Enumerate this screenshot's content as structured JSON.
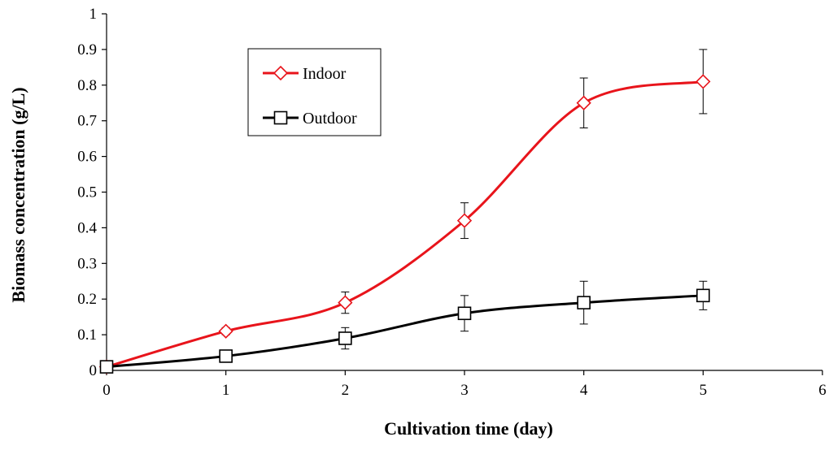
{
  "chart_data": {
    "type": "line",
    "title": "",
    "xlabel": "Cultivation time (day)",
    "ylabel": "Biomass concentration (g/L)",
    "xlim": [
      0,
      6
    ],
    "ylim": [
      0,
      1
    ],
    "x_ticks": [
      "0",
      "1",
      "2",
      "3",
      "4",
      "5",
      "6"
    ],
    "y_ticks": [
      "0",
      "0.1",
      "0.2",
      "0.3",
      "0.4",
      "0.5",
      "0.6",
      "0.7",
      "0.8",
      "0.9",
      "1"
    ],
    "grid": false,
    "legend_position": "top-left",
    "series": [
      {
        "name": "Indoor",
        "color": "#e8141b",
        "marker": "diamond",
        "x": [
          0,
          1,
          2,
          3,
          4,
          5
        ],
        "values": [
          0.01,
          0.11,
          0.19,
          0.42,
          0.75,
          0.81
        ],
        "errors": [
          0.0,
          0.01,
          0.03,
          0.05,
          0.07,
          0.09
        ]
      },
      {
        "name": "Outdoor",
        "color": "#000000",
        "marker": "square",
        "x": [
          0,
          1,
          2,
          3,
          4,
          5
        ],
        "values": [
          0.01,
          0.04,
          0.09,
          0.16,
          0.19,
          0.21
        ],
        "errors": [
          0.0,
          0.01,
          0.03,
          0.05,
          0.06,
          0.04
        ]
      }
    ]
  }
}
